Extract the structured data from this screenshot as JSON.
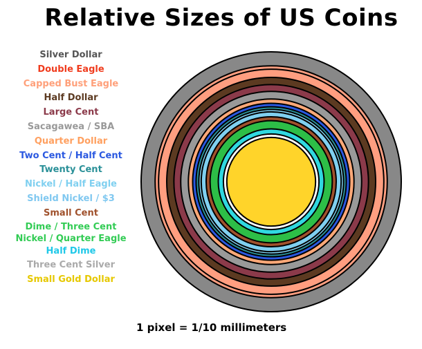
{
  "title": "Relative Sizes of US Coins",
  "footnote": "1 pixel = 1/10 millimeters",
  "coins": [
    {
      "name": "Silver Dollar",
      "diameter_mm": 38.1,
      "color": "#888888",
      "legend_color": "#555555"
    },
    {
      "name": "Double Eagle",
      "diameter_mm": 34.0,
      "color": "#FF9E80",
      "legend_color": "#F03C1E"
    },
    {
      "name": "Capped Bust Eagle",
      "diameter_mm": 33.0,
      "color": "#FF9E80",
      "legend_color": "#FFA07A"
    },
    {
      "name": "Half Dollar",
      "diameter_mm": 30.6,
      "color": "#5C3A21",
      "legend_color": "#5C3A21"
    },
    {
      "name": "Large Cent",
      "diameter_mm": 28.5,
      "color": "#8B3A4A",
      "legend_color": "#8B3A4A"
    },
    {
      "name": "Sacagawea / SBA",
      "diameter_mm": 26.5,
      "color": "#999999",
      "legend_color": "#999999"
    },
    {
      "name": "Quarter Dollar",
      "diameter_mm": 24.26,
      "color": "#FFA878",
      "legend_color": "#FFA060"
    },
    {
      "name": "Two Cent / Half Cent",
      "diameter_mm": 23.0,
      "color": "#2A58E0",
      "legend_color": "#2A58E0"
    },
    {
      "name": "Twenty Cent",
      "diameter_mm": 22.0,
      "color": "#2A9098",
      "legend_color": "#2A9098"
    },
    {
      "name": "Nickel / Half Eagle",
      "diameter_mm": 21.2,
      "color": "#80D0F0",
      "legend_color": "#80D0F0"
    },
    {
      "name": "Shield Nickel / $3",
      "diameter_mm": 20.5,
      "color": "#80D0F0",
      "legend_color": "#80C8F0"
    },
    {
      "name": "Small Cent",
      "diameter_mm": 19.05,
      "color": "#A0522D",
      "legend_color": "#A0522D"
    },
    {
      "name": "Dime / Three Cent\nNickel / Quarter Eagle",
      "diameter_mm": 17.9,
      "color": "#2DBE47",
      "legend_color": "#33CC55"
    },
    {
      "name": "Half Dime",
      "diameter_mm": 15.5,
      "color": "#30D8E0",
      "legend_color": "#20C8E8"
    },
    {
      "name": "Three Cent Silver",
      "diameter_mm": 14.0,
      "color": "#ffffff",
      "legend_color": "#AAAAAA"
    },
    {
      "name": "Small Gold Dollar",
      "diameter_mm": 13.0,
      "color": "#FFD42A",
      "legend_color": "#E6C800"
    }
  ]
}
